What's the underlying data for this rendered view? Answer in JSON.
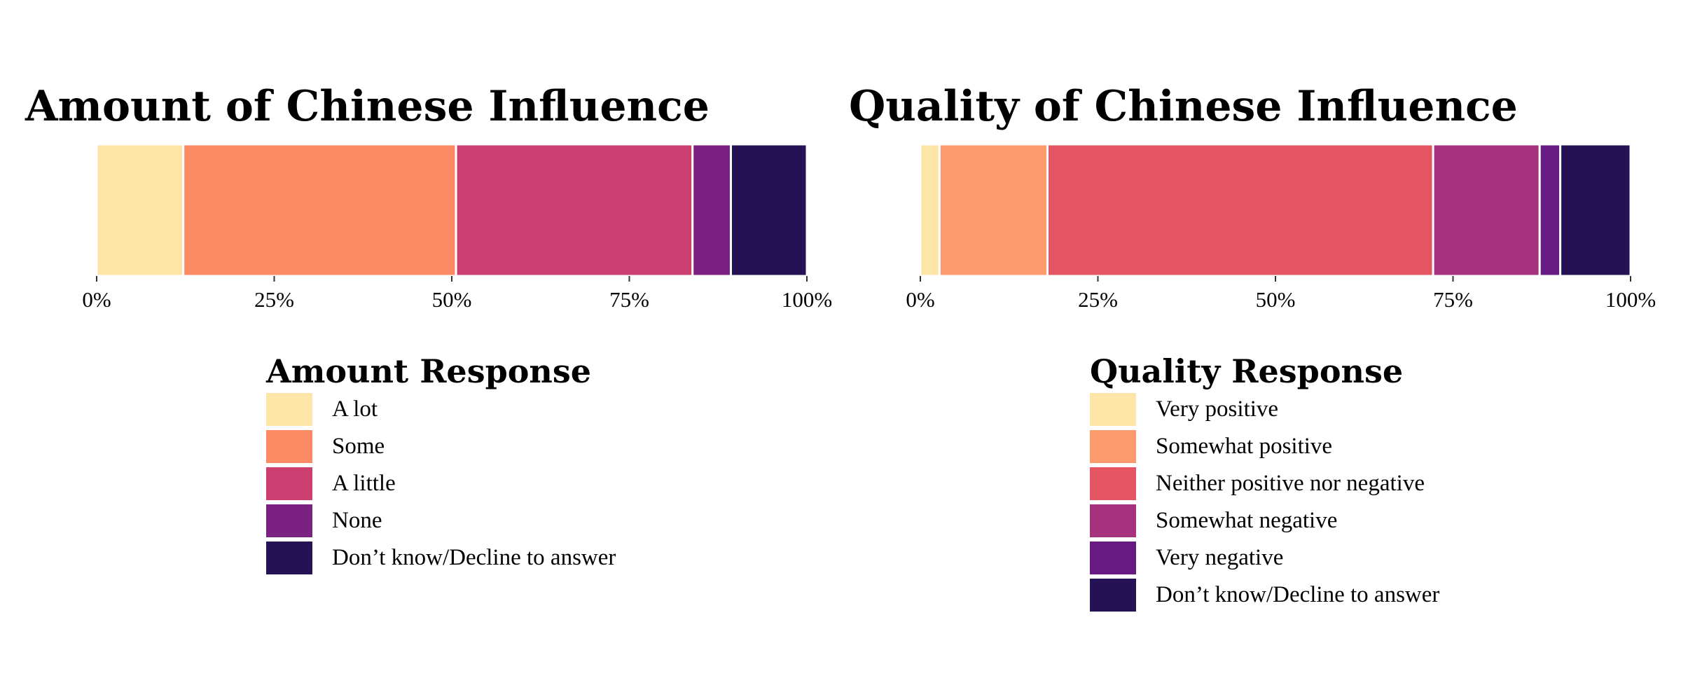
{
  "chart_data": [
    {
      "type": "bar",
      "orientation": "horizontal-stacked",
      "title": "Amount of Chinese Influence",
      "x_ticks": [
        "0%",
        "25%",
        "50%",
        "75%",
        "100%"
      ],
      "xlim": [
        0,
        100
      ],
      "grid": false,
      "legend_title": "Amount Response",
      "legend_position": "bottom",
      "series": [
        {
          "name": "A lot",
          "value": 12.2,
          "color": "#fde5a7"
        },
        {
          "name": "Some",
          "value": 38.4,
          "color": "#fc8a62"
        },
        {
          "name": "A little",
          "value": 33.3,
          "color": "#cc3f71"
        },
        {
          "name": "None",
          "value": 5.4,
          "color": "#7a2181"
        },
        {
          "name": "Don’t know/Decline to answer",
          "value": 10.7,
          "color": "#251255"
        }
      ]
    },
    {
      "type": "bar",
      "orientation": "horizontal-stacked",
      "title": "Quality of Chinese Influence",
      "x_ticks": [
        "0%",
        "25%",
        "50%",
        "75%",
        "100%"
      ],
      "xlim": [
        0,
        100
      ],
      "grid": false,
      "legend_title": "Quality Response",
      "legend_position": "bottom",
      "series": [
        {
          "name": "Very positive",
          "value": 2.7,
          "color": "#fde5a7"
        },
        {
          "name": "Somewhat positive",
          "value": 15.2,
          "color": "#fc9a6b"
        },
        {
          "name": "Neither positive nor negative",
          "value": 54.3,
          "color": "#e55463"
        },
        {
          "name": "Somewhat negative",
          "value": 15.0,
          "color": "#a6317d"
        },
        {
          "name": "Very negative",
          "value": 2.9,
          "color": "#681a84"
        },
        {
          "name": "Don’t know/Decline to answer",
          "value": 9.9,
          "color": "#251255"
        }
      ]
    }
  ]
}
